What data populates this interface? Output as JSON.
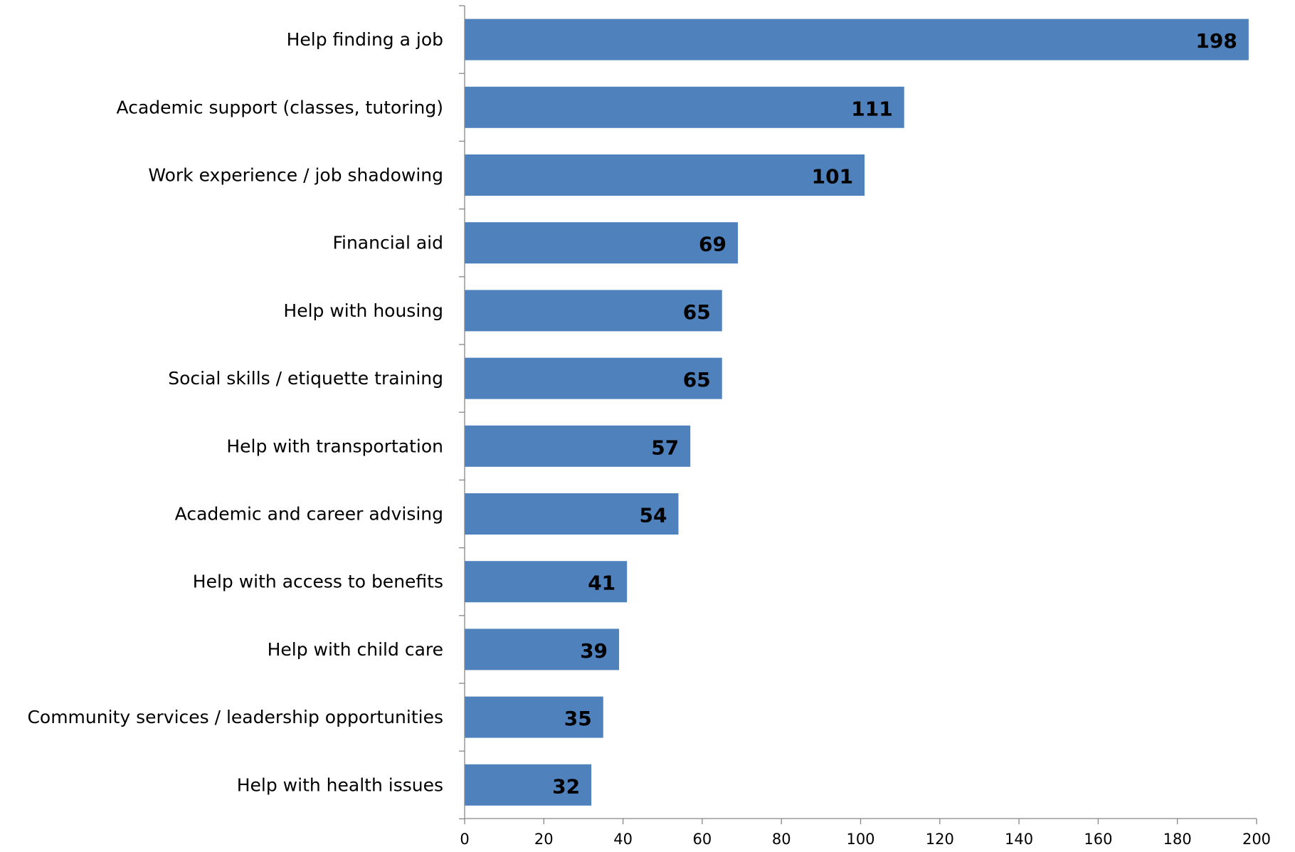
{
  "chart_data": {
    "type": "bar",
    "orientation": "horizontal",
    "title": "",
    "xlabel": "",
    "ylabel": "",
    "categories": [
      "Help finding a job",
      "Academic support (classes, tutoring)",
      "Work experience / job shadowing",
      "Financial aid",
      "Help with housing",
      "Social skills / etiquette training",
      "Help with transportation",
      "Academic and career advising",
      "Help with access to benefits",
      "Help with child care",
      "Community services / leadership opportunities",
      "Help with health issues"
    ],
    "values": [
      198,
      111,
      101,
      69,
      65,
      65,
      57,
      54,
      41,
      39,
      35,
      32
    ],
    "data_labels": [
      "198",
      "111",
      "101",
      "69",
      "65",
      "65",
      "57",
      "54",
      "41",
      "39",
      "35",
      "32"
    ],
    "xlim": [
      0,
      200
    ],
    "x_ticks": [
      0,
      20,
      40,
      60,
      80,
      100,
      120,
      140,
      160,
      180,
      200
    ],
    "x_tick_labels": [
      "0",
      "20",
      "40",
      "60",
      "80",
      "100",
      "120",
      "140",
      "160",
      "180",
      "200"
    ],
    "grid": false,
    "legend": "none",
    "bar_color": "#4F81BD",
    "axis_color": "#878787"
  }
}
